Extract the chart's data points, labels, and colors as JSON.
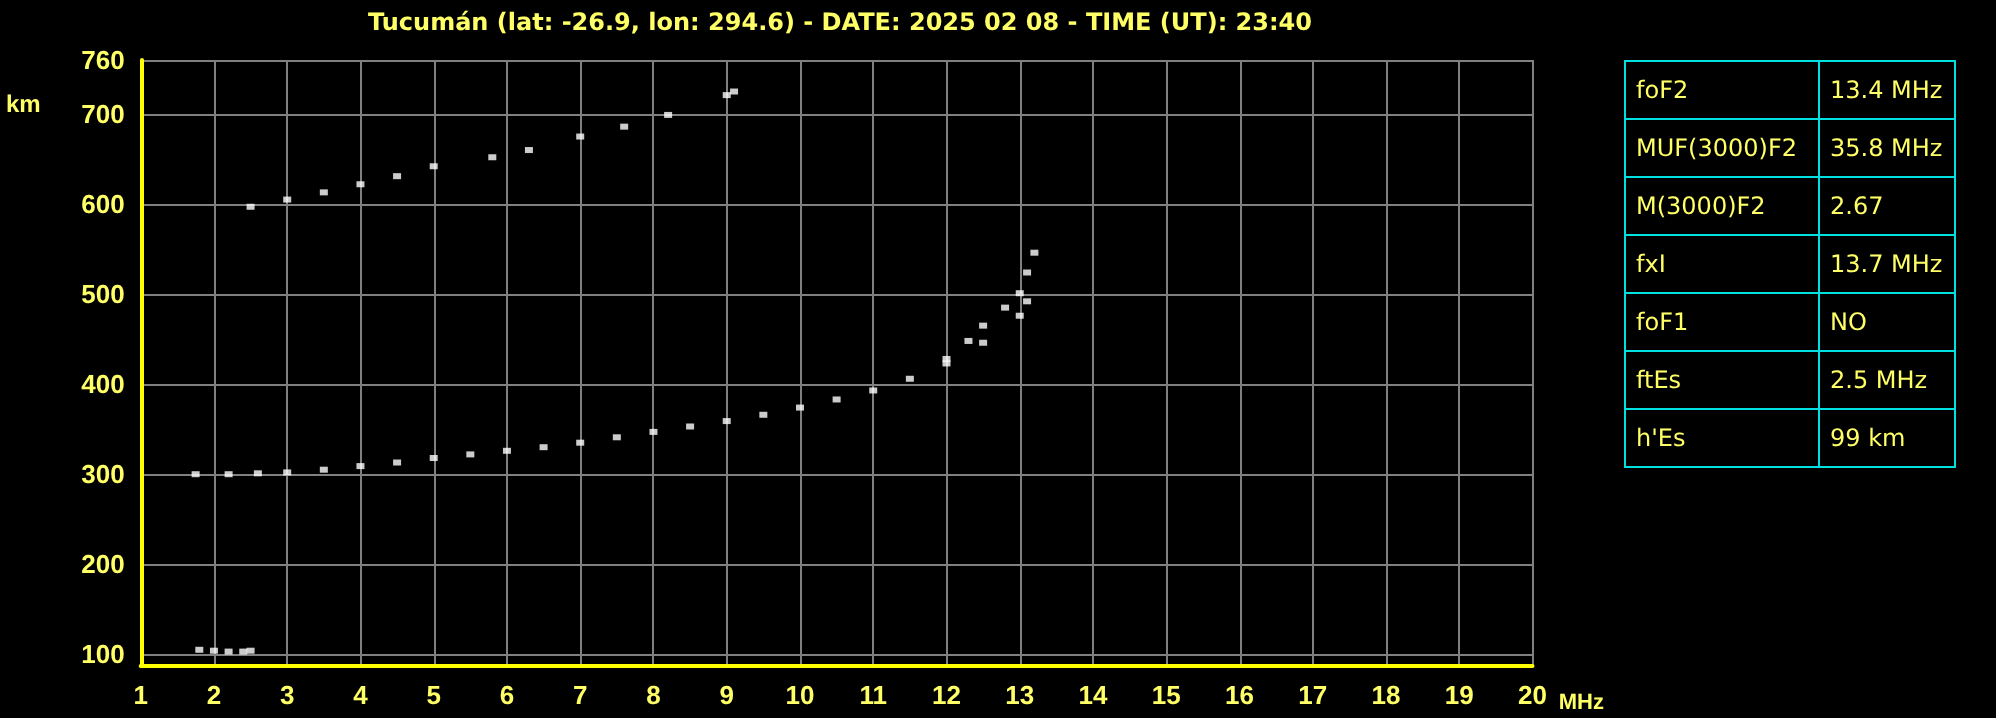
{
  "chart_data": [
    {
      "type": "scatter",
      "title": "Tucumán (lat: -26.9, lon: 294.6) - DATE: 2025 02 08 - TIME (UT): 23:40",
      "xlabel": "MHz",
      "ylabel": "km",
      "xlim": [
        1,
        20
      ],
      "xticks": [
        1,
        2,
        3,
        4,
        5,
        6,
        7,
        8,
        9,
        10,
        11,
        12,
        13,
        14,
        15,
        16,
        17,
        18,
        19,
        20
      ],
      "ylim": [
        87,
        760
      ],
      "yticks": [
        100,
        200,
        300,
        400,
        500,
        600,
        700,
        760
      ],
      "grid": true,
      "marker": "square",
      "series": [
        {
          "color": "#ffffff",
          "x": [
            1.75,
            2.2,
            2.6,
            3,
            3.5,
            4,
            4.5,
            5,
            5.5,
            6,
            6.5,
            7,
            7.5,
            8,
            8.5,
            9,
            9.5,
            10,
            10.5,
            11,
            11.5,
            12,
            12.5,
            13,
            13.1
          ],
          "values": [
            300,
            300,
            301,
            302,
            305,
            309,
            313,
            318,
            322,
            326,
            330,
            335,
            341,
            347,
            353,
            359,
            366,
            374,
            383,
            393,
            406,
            423,
            446,
            476,
            492
          ]
        },
        {
          "color": "#ffffff",
          "x": [
            12,
            12.3,
            12.5,
            12.8,
            13,
            13.1,
            13.2
          ],
          "values": [
            428,
            448,
            465,
            485,
            501,
            524,
            546
          ]
        },
        {
          "color": "#ffffff",
          "x": [
            2.5,
            3,
            3.5,
            4,
            4.5,
            5,
            5.8,
            6.3,
            7,
            7.6,
            8.2,
            9,
            9.1
          ],
          "values": [
            597,
            605,
            613,
            622,
            631,
            642,
            652,
            660,
            675,
            686,
            699,
            721,
            725
          ]
        },
        {
          "color": "#ffffff",
          "x": [
            1.8,
            2,
            2.2,
            2.4,
            2.5
          ],
          "values": [
            105,
            104,
            103,
            103,
            104
          ]
        }
      ]
    },
    {
      "type": "other",
      "categories": [
        "foF2",
        "MUF(3000)F2",
        "M(3000)F2",
        "fxI",
        "foF1",
        "ftEs",
        "h'Es"
      ],
      "value_labels": [
        "13.4 MHz",
        "35.8 MHz",
        "2.67",
        "13.7 MHz",
        "NO",
        "2.5 MHz",
        "99 km"
      ]
    }
  ]
}
